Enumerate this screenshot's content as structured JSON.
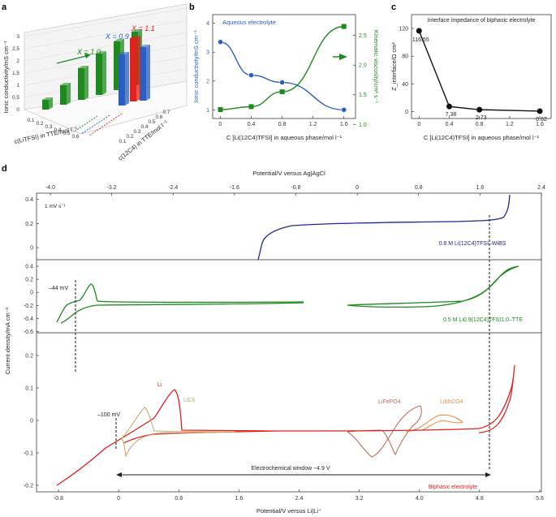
{
  "panel_labels": {
    "a": "a",
    "b": "b",
    "c": "c",
    "d": "d"
  },
  "colors": {
    "blue": "#2a5fc1",
    "green": "#1e8a1e",
    "red": "#e0201b",
    "navy": "#1a2a8c",
    "black": "#111111",
    "tan": "#c8a86a",
    "brown": "#c0705a",
    "orange": "#e8904a",
    "darkgreen": "#1a7a1a"
  },
  "chart_data": [
    {
      "panel": "a",
      "type": "bar",
      "ylabel": "Ionic conductivity/mS cm⁻¹",
      "xlabel": "c(LiTFSI) in TTE/mol l⁻¹",
      "zlabel": "c(12C4) in TTE/mol l⁻¹",
      "x_ticks": [
        "0.1",
        "0.2",
        "0.3",
        "0.4",
        "0.5",
        "0.6"
      ],
      "z_ticks": [
        "0.7",
        "0.6",
        "0.5",
        "0.4",
        "0.3",
        "0.2",
        "0.1"
      ],
      "y_ticks": [
        "0",
        "0.5",
        "1",
        "1.5",
        "2",
        "2.5",
        "3"
      ],
      "annotations": [
        {
          "text": "X = 1.1",
          "color": "#e0201b"
        },
        {
          "text": "X = 0.9",
          "color": "#2a5fc1"
        },
        {
          "text": "X = 1.0",
          "color": "#1e8a1e"
        }
      ],
      "series": [
        {
          "name": "X = 1.0",
          "color": "green",
          "values": [
            0.4,
            0.8,
            1.3,
            1.7,
            2.0,
            2.2
          ]
        },
        {
          "name": "X = 0.9",
          "color": "blue",
          "values": [
            2.1,
            2.2
          ]
        },
        {
          "name": "X = 1.1",
          "color": "red",
          "values": [
            2.6
          ]
        }
      ]
    },
    {
      "panel": "b",
      "type": "line",
      "xlabel": "C [Li(12C4)TFSI] in aqueous phase/mol l⁻¹",
      "ylabel": "Ionic conductivity/mS cm⁻¹",
      "y2label": "Kinematic viscosity/cm² s⁻¹",
      "legend": "Aqueous electrolyte",
      "x_ticks": [
        "0",
        "0.4",
        "0.8",
        "1.2",
        "1.6"
      ],
      "y_ticks": [
        "1",
        "2",
        "3",
        "4"
      ],
      "y2_ticks": [
        "1.0",
        "1.5",
        "2.0",
        "2.5"
      ],
      "xlim": [
        -0.1,
        1.75
      ],
      "ylim": [
        0.7,
        4.3
      ],
      "y2lim": [
        1.1,
        2.85
      ],
      "series": [
        {
          "name": "Ionic conductivity",
          "color": "blue",
          "x": [
            0,
            0.4,
            0.8,
            1.6
          ],
          "y": [
            3.35,
            2.2,
            1.95,
            1.0
          ]
        },
        {
          "name": "Kinematic viscosity",
          "color": "green",
          "x": [
            0,
            0.4,
            0.8,
            1.6
          ],
          "y": [
            1.25,
            1.3,
            1.55,
            2.65
          ]
        }
      ]
    },
    {
      "panel": "c",
      "type": "line",
      "title": "Interface impedance of biphasic electrolyte",
      "xlabel": "C [Li(12C4)TFSI] in aqueous phase/mol l⁻¹",
      "ylabel": "Z_interface/Ω cm²",
      "x_ticks": [
        "0",
        "0.4",
        "0.8",
        "1.2",
        "1.6"
      ],
      "y_ticks": [
        "0",
        "40",
        "80",
        "120"
      ],
      "xlim": [
        -0.1,
        1.75
      ],
      "ylim": [
        -10,
        140
      ],
      "x": [
        0,
        0.4,
        0.8,
        1.6
      ],
      "y": [
        116.55,
        7.38,
        2.73,
        0.62
      ],
      "data_labels": [
        "116.55",
        "7.38",
        "2.73",
        "0.62"
      ]
    },
    {
      "panel": "d",
      "type": "line",
      "top_axis_label": "Potential/V versus Ag|AgCl",
      "bottom_axis_label": "Potential/V versus Li|Li⁺",
      "ylabel": "Current density/mA cm⁻²",
      "top_ticks": [
        "-4.0",
        "-3.2",
        "-2.4",
        "-1.6",
        "-0.8",
        "0",
        "0.8",
        "1.6",
        "2.4"
      ],
      "bottom_ticks": [
        "-0.8",
        "0",
        "0.8",
        "1.6",
        "2.4",
        "3.2",
        "4.0",
        "4.8",
        "5.6"
      ],
      "subplots": [
        {
          "name": "0.8 M Li(12C4)TFSI–WiBS",
          "color": "navy",
          "y_ticks": [
            "0",
            "0.2",
            "0.4"
          ],
          "ylim": [
            -0.1,
            0.45
          ],
          "note": "1 mV s⁻¹"
        },
        {
          "name": "0.5 M Li0.9(12C4)TFSI1.0–TTE",
          "color": "green",
          "y_ticks": [
            "-0.6",
            "-0.4",
            "-0.2",
            "0",
            "0.2",
            "0.4"
          ],
          "ylim": [
            -0.62,
            0.5
          ],
          "marker": "–44 mV"
        },
        {
          "name": "Biphasic electrolyte",
          "color": "red",
          "y_ticks": [
            "-0.2",
            "-0.1",
            "0",
            "0.1",
            "0.2"
          ],
          "ylim": [
            -0.22,
            0.27
          ],
          "marker": "–100 mV",
          "labels": [
            {
              "text": "Li",
              "color": "red"
            },
            {
              "text": "LiC6",
              "color": "tan"
            },
            {
              "text": "LiFePO4",
              "color": "brown"
            },
            {
              "text": "LiMn2O4",
              "color": "orange"
            }
          ],
          "window_label": "Electrochemical window ~4.9 V"
        }
      ]
    }
  ]
}
